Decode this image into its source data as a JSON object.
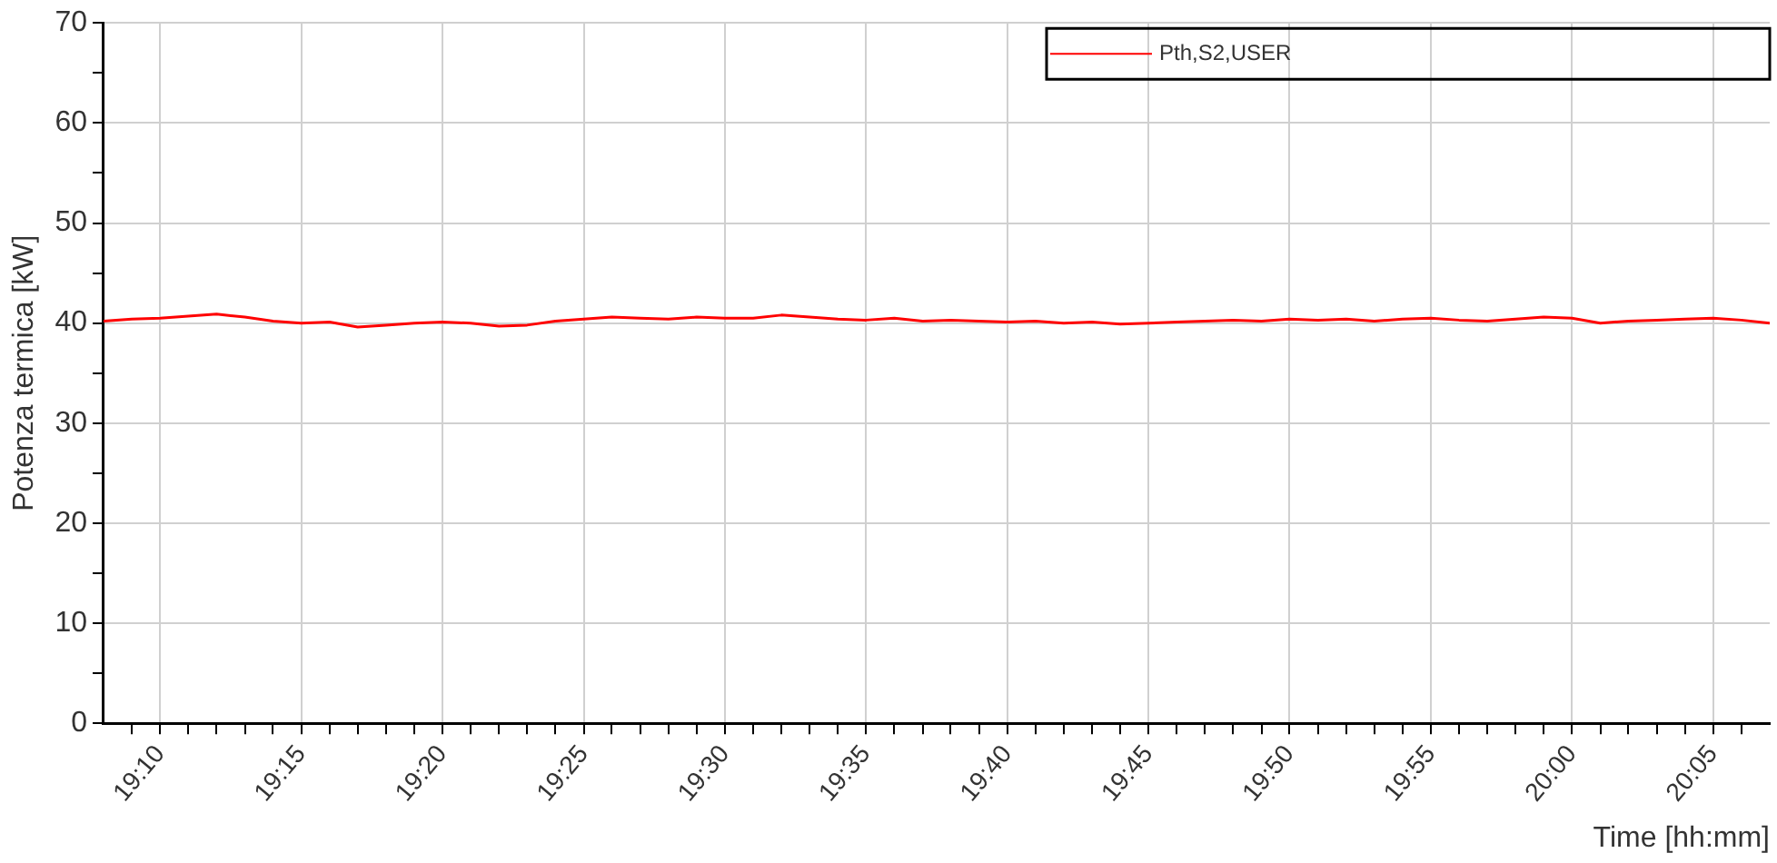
{
  "chart_data": {
    "type": "line",
    "xlabel": "Time [hh:mm]",
    "ylabel": "Potenza termica [kW]",
    "x": [
      19.1333,
      19.15,
      19.1667,
      19.1833,
      19.2,
      19.2167,
      19.2333,
      19.25,
      19.2667,
      19.2833,
      19.3,
      19.3167,
      19.3333,
      19.35,
      19.3667,
      19.3833,
      19.4,
      19.4167,
      19.4333,
      19.45,
      19.4667,
      19.4833,
      19.5,
      19.5167,
      19.5333,
      19.55,
      19.5667,
      19.5833,
      19.6,
      19.6167,
      19.6333,
      19.65,
      19.6667,
      19.6833,
      19.7,
      19.7167,
      19.7333,
      19.75,
      19.7667,
      19.7833,
      19.8,
      19.8167,
      19.8333,
      19.85,
      19.8667,
      19.8833,
      19.9,
      19.9167,
      19.9333,
      19.95,
      19.9667,
      19.9833,
      20.0,
      20.0167,
      20.0333,
      20.05,
      20.0667,
      20.0833,
      20.1,
      20.1167
    ],
    "series": [
      {
        "name": "Pth,S2,USER",
        "color": "#ff0000",
        "values": [
          40.2,
          40.4,
          40.5,
          40.7,
          40.9,
          40.6,
          40.2,
          40.0,
          40.1,
          39.6,
          39.8,
          40.0,
          40.1,
          40.0,
          39.7,
          39.8,
          40.2,
          40.4,
          40.6,
          40.5,
          40.4,
          40.6,
          40.5,
          40.5,
          40.8,
          40.6,
          40.4,
          40.3,
          40.5,
          40.2,
          40.3,
          40.2,
          40.1,
          40.2,
          40.0,
          40.1,
          39.9,
          40.0,
          40.1,
          40.2,
          40.3,
          40.2,
          40.4,
          40.3,
          40.4,
          40.2,
          40.4,
          40.5,
          40.3,
          40.2,
          40.4,
          40.6,
          40.5,
          40.0,
          40.2,
          40.3,
          40.4,
          40.5,
          40.3,
          40.0
        ]
      }
    ],
    "xlim": [
      19.1333,
      20.1167
    ],
    "xticks": [
      {
        "value": 19.15,
        "label": null
      },
      {
        "value": 19.1667,
        "label": "19:10"
      },
      {
        "value": 19.1833,
        "label": null
      },
      {
        "value": 19.2,
        "label": null
      },
      {
        "value": 19.2167,
        "label": null
      },
      {
        "value": 19.2333,
        "label": null
      },
      {
        "value": 19.25,
        "label": "19:15"
      },
      {
        "value": 19.2667,
        "label": null
      },
      {
        "value": 19.2833,
        "label": null
      },
      {
        "value": 19.3,
        "label": null
      },
      {
        "value": 19.3167,
        "label": null
      },
      {
        "value": 19.3333,
        "label": "19:20"
      },
      {
        "value": 19.35,
        "label": null
      },
      {
        "value": 19.3667,
        "label": null
      },
      {
        "value": 19.3833,
        "label": null
      },
      {
        "value": 19.4,
        "label": null
      },
      {
        "value": 19.4167,
        "label": "19:25"
      },
      {
        "value": 19.4333,
        "label": null
      },
      {
        "value": 19.45,
        "label": null
      },
      {
        "value": 19.4667,
        "label": null
      },
      {
        "value": 19.4833,
        "label": null
      },
      {
        "value": 19.5,
        "label": "19:30"
      },
      {
        "value": 19.5167,
        "label": null
      },
      {
        "value": 19.5333,
        "label": null
      },
      {
        "value": 19.55,
        "label": null
      },
      {
        "value": 19.5667,
        "label": null
      },
      {
        "value": 19.5833,
        "label": "19:35"
      },
      {
        "value": 19.6,
        "label": null
      },
      {
        "value": 19.6167,
        "label": null
      },
      {
        "value": 19.6333,
        "label": null
      },
      {
        "value": 19.65,
        "label": null
      },
      {
        "value": 19.6667,
        "label": "19:40"
      },
      {
        "value": 19.6833,
        "label": null
      },
      {
        "value": 19.7,
        "label": null
      },
      {
        "value": 19.7167,
        "label": null
      },
      {
        "value": 19.7333,
        "label": null
      },
      {
        "value": 19.75,
        "label": "19:45"
      },
      {
        "value": 19.7667,
        "label": null
      },
      {
        "value": 19.7833,
        "label": null
      },
      {
        "value": 19.8,
        "label": null
      },
      {
        "value": 19.8167,
        "label": null
      },
      {
        "value": 19.8333,
        "label": "19:50"
      },
      {
        "value": 19.85,
        "label": null
      },
      {
        "value": 19.8667,
        "label": null
      },
      {
        "value": 19.8833,
        "label": null
      },
      {
        "value": 19.9,
        "label": null
      },
      {
        "value": 19.9167,
        "label": "19:55"
      },
      {
        "value": 19.9333,
        "label": null
      },
      {
        "value": 19.95,
        "label": null
      },
      {
        "value": 19.9667,
        "label": null
      },
      {
        "value": 19.9833,
        "label": null
      },
      {
        "value": 20.0,
        "label": "20:00"
      },
      {
        "value": 20.0167,
        "label": null
      },
      {
        "value": 20.0333,
        "label": null
      },
      {
        "value": 20.05,
        "label": null
      },
      {
        "value": 20.0667,
        "label": null
      },
      {
        "value": 20.0833,
        "label": "20:05"
      },
      {
        "value": 20.1,
        "label": null
      }
    ],
    "ylim": [
      0,
      70
    ],
    "yticks": [
      0,
      {
        "value": 5,
        "label": null
      },
      10,
      {
        "value": 15,
        "label": null
      },
      20,
      {
        "value": 25,
        "label": null
      },
      30,
      {
        "value": 35,
        "label": null
      },
      40,
      {
        "value": 45,
        "label": null
      },
      50,
      {
        "value": 55,
        "label": null
      },
      60,
      {
        "value": 65,
        "label": null
      },
      70
    ],
    "grid": true,
    "legend": "top right",
    "marker": "none",
    "line_style": "solid"
  }
}
